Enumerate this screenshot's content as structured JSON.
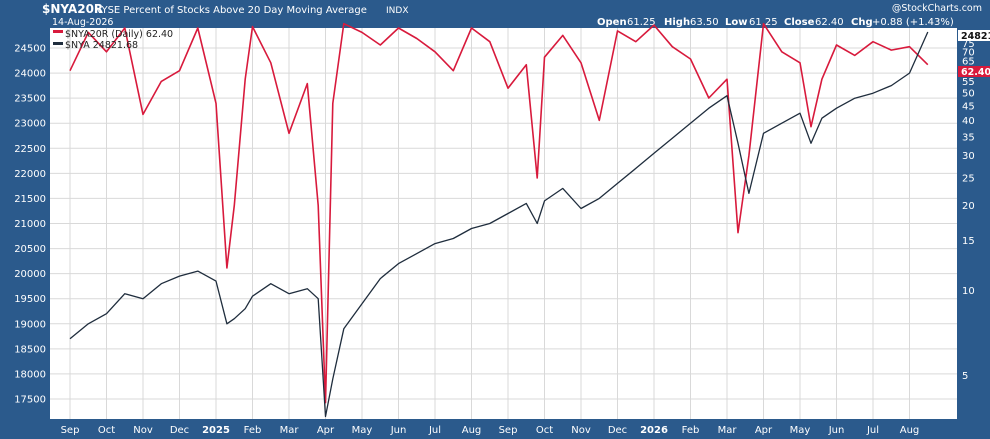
{
  "header": {
    "symbol": "$NYA20R",
    "name": "NYSE Percent of Stocks Above 20 Day Moving Average",
    "exchange": "INDX",
    "date": "14-Aug-2026",
    "watermark": "@StockCharts.com",
    "ohlc": {
      "open_label": "Open",
      "open": "61.25",
      "high_label": "High",
      "high": "63.50",
      "low_label": "Low",
      "low": "61.25",
      "close_label": "Close",
      "close": "62.40",
      "chg_label": "Chg",
      "chg": "+0.88 (+1.43%)"
    }
  },
  "legend": [
    {
      "text": "$NYA20R (Daily) 62.40",
      "color": "#d81a3c"
    },
    {
      "text": "$NYA 24821.68",
      "color": "#1f2d3d"
    }
  ],
  "price_tags": {
    "nya": "24821",
    "nya20r": "62.40"
  },
  "colors": {
    "panel_bg": "#2b5a8c",
    "plot_bg": "#ffffff",
    "grid": "#d9d9d9",
    "nya20r": "#d81a3c",
    "nya": "#1f2d3d"
  },
  "chart_data": {
    "type": "line",
    "title": "$NYA20R NYSE Percent of Stocks Above 20 Day Moving Average",
    "x_ticks": [
      {
        "label": "Sep",
        "bold": false
      },
      {
        "label": "Oct",
        "bold": false
      },
      {
        "label": "Nov",
        "bold": false
      },
      {
        "label": "Dec",
        "bold": false
      },
      {
        "label": "2025",
        "bold": true
      },
      {
        "label": "Feb",
        "bold": false
      },
      {
        "label": "Mar",
        "bold": false
      },
      {
        "label": "Apr",
        "bold": false
      },
      {
        "label": "May",
        "bold": false
      },
      {
        "label": "Jun",
        "bold": false
      },
      {
        "label": "Jul",
        "bold": false
      },
      {
        "label": "Aug",
        "bold": false
      },
      {
        "label": "Sep",
        "bold": false
      },
      {
        "label": "Oct",
        "bold": false
      },
      {
        "label": "Nov",
        "bold": false
      },
      {
        "label": "Dec",
        "bold": false
      },
      {
        "label": "2026",
        "bold": true
      },
      {
        "label": "Feb",
        "bold": false
      },
      {
        "label": "Mar",
        "bold": false
      },
      {
        "label": "Apr",
        "bold": false
      },
      {
        "label": "May",
        "bold": false
      },
      {
        "label": "Jun",
        "bold": false
      },
      {
        "label": "Jul",
        "bold": false
      },
      {
        "label": "Aug",
        "bold": false
      }
    ],
    "left_axis": {
      "label": "",
      "ticks": [
        17500,
        18000,
        18500,
        19000,
        19500,
        20000,
        20500,
        21000,
        21500,
        22000,
        22500,
        23000,
        23500,
        24000,
        24500
      ],
      "range": [
        17100,
        24900
      ]
    },
    "right_axis": {
      "label": "",
      "scale": "log",
      "ticks": [
        5,
        10,
        15,
        20,
        25,
        30,
        35,
        40,
        45,
        50,
        55,
        60,
        65,
        70,
        75
      ],
      "range": [
        3.5,
        85
      ]
    },
    "grid": true,
    "legend_position": "top-left",
    "series": [
      {
        "name": "$NYA20R (Daily) 62.40",
        "axis": "right",
        "x_month": [
          0,
          0.5,
          1,
          1.5,
          2,
          2.5,
          3,
          3.5,
          4,
          4.3,
          4.5,
          4.8,
          5,
          5.5,
          6,
          6.5,
          6.8,
          7.0,
          7.2,
          7.5,
          8,
          8.5,
          9,
          9.5,
          10,
          10.5,
          11,
          11.5,
          12,
          12.5,
          12.8,
          13,
          13.5,
          14,
          14.5,
          15,
          15.5,
          16,
          16.5,
          17,
          17.5,
          18,
          18.3,
          18.6,
          19,
          19.5,
          20,
          20.3,
          20.6,
          21,
          21.5,
          22,
          22.5,
          23,
          23.5
        ],
        "values": [
          60,
          82,
          70,
          85,
          42,
          55,
          60,
          85,
          46,
          12,
          20,
          56,
          86,
          64,
          36,
          54,
          20,
          4,
          46,
          88,
          82,
          74,
          85,
          78,
          70,
          60,
          85,
          76,
          52,
          63,
          25,
          67,
          80,
          64,
          40,
          83,
          76,
          87,
          73,
          66,
          48,
          56,
          16,
          30,
          88,
          70,
          64,
          38,
          56,
          74,
          68,
          76,
          71,
          73,
          63
        ]
      },
      {
        "name": "$NYA 24821.68",
        "axis": "left",
        "x_month": [
          0,
          0.5,
          1,
          1.5,
          2,
          2.5,
          3,
          3.5,
          4,
          4.3,
          4.5,
          4.8,
          5,
          5.5,
          6,
          6.5,
          6.8,
          7.0,
          7.2,
          7.5,
          8,
          8.5,
          9,
          9.5,
          10,
          10.5,
          11,
          11.5,
          12,
          12.5,
          12.8,
          13,
          13.5,
          14,
          14.5,
          15,
          15.5,
          16,
          16.5,
          17,
          17.5,
          18,
          18.3,
          18.6,
          19,
          19.5,
          20,
          20.3,
          20.6,
          21,
          21.5,
          22,
          22.5,
          23,
          23.5
        ],
        "values": [
          18700,
          19000,
          19200,
          19600,
          19500,
          19800,
          19950,
          20050,
          19850,
          19000,
          19100,
          19300,
          19550,
          19800,
          19600,
          19700,
          19500,
          17150,
          17900,
          18900,
          19400,
          19900,
          20200,
          20400,
          20600,
          20700,
          20900,
          21000,
          21200,
          21400,
          21000,
          21450,
          21700,
          21300,
          21500,
          21800,
          22100,
          22400,
          22700,
          23000,
          23300,
          23550,
          22600,
          21600,
          22800,
          23000,
          23200,
          22600,
          23100,
          23300,
          23500,
          23600,
          23750,
          24000,
          24821
        ]
      }
    ]
  }
}
